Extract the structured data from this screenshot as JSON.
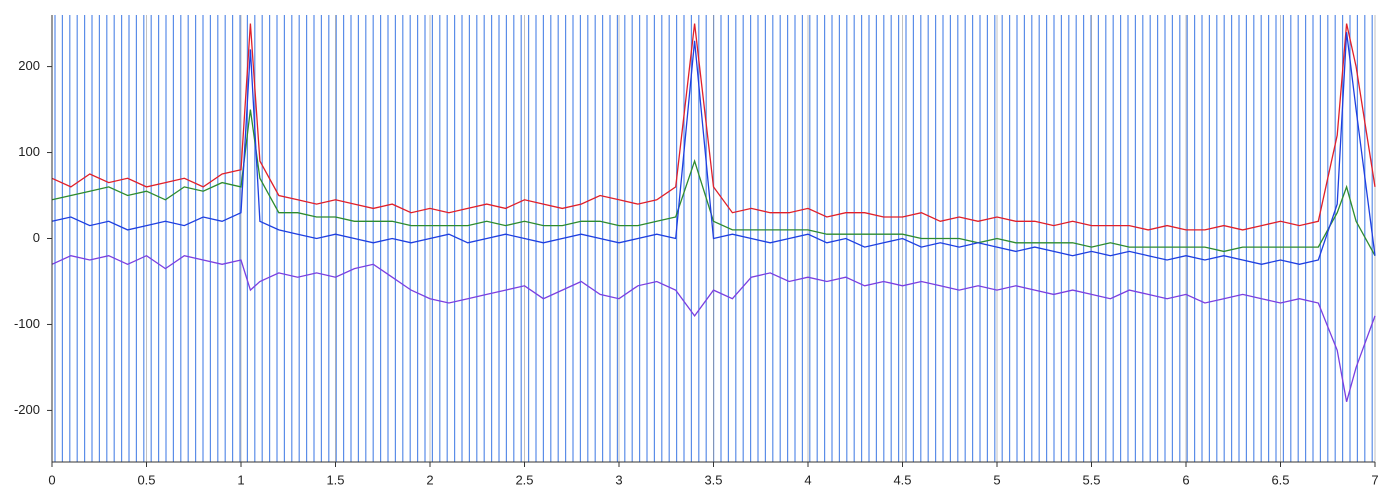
{
  "chart_data": {
    "type": "line",
    "x": [
      0,
      0.1,
      0.2,
      0.3,
      0.4,
      0.5,
      0.6,
      0.7,
      0.8,
      0.9,
      1,
      1.05,
      1.1,
      1.2,
      1.3,
      1.4,
      1.5,
      1.6,
      1.7,
      1.8,
      1.9,
      2,
      2.1,
      2.2,
      2.3,
      2.4,
      2.5,
      2.6,
      2.7,
      2.8,
      2.9,
      3,
      3.1,
      3.2,
      3.3,
      3.4,
      3.5,
      3.6,
      3.7,
      3.8,
      3.9,
      4,
      4.1,
      4.2,
      4.3,
      4.4,
      4.5,
      4.6,
      4.7,
      4.8,
      4.9,
      5,
      5.1,
      5.2,
      5.3,
      5.4,
      5.5,
      5.6,
      5.7,
      5.8,
      5.9,
      6,
      6.1,
      6.2,
      6.3,
      6.4,
      6.5,
      6.6,
      6.7,
      6.8,
      6.85,
      6.9,
      7
    ],
    "series": [
      {
        "color": "#e0202a",
        "values": [
          70,
          60,
          75,
          65,
          70,
          60,
          65,
          70,
          60,
          75,
          80,
          250,
          90,
          50,
          45,
          40,
          45,
          40,
          35,
          40,
          30,
          35,
          30,
          35,
          40,
          35,
          45,
          40,
          35,
          40,
          50,
          45,
          40,
          45,
          60,
          250,
          60,
          30,
          35,
          30,
          30,
          35,
          25,
          30,
          30,
          25,
          25,
          30,
          20,
          25,
          20,
          25,
          20,
          20,
          15,
          20,
          15,
          15,
          15,
          10,
          15,
          10,
          10,
          15,
          10,
          15,
          20,
          15,
          20,
          120,
          250,
          200,
          60
        ]
      },
      {
        "color": "#2e8b2e",
        "values": [
          45,
          50,
          55,
          60,
          50,
          55,
          45,
          60,
          55,
          65,
          60,
          150,
          70,
          30,
          30,
          25,
          25,
          20,
          20,
          20,
          15,
          15,
          15,
          15,
          20,
          15,
          20,
          15,
          15,
          20,
          20,
          15,
          15,
          20,
          25,
          90,
          20,
          10,
          10,
          10,
          10,
          10,
          5,
          5,
          5,
          5,
          5,
          0,
          0,
          0,
          -5,
          0,
          -5,
          -5,
          -5,
          -5,
          -10,
          -5,
          -10,
          -10,
          -10,
          -10,
          -10,
          -15,
          -10,
          -10,
          -10,
          -10,
          -10,
          30,
          60,
          20,
          -20
        ]
      },
      {
        "color": "#1f3fe0",
        "values": [
          20,
          25,
          15,
          20,
          10,
          15,
          20,
          15,
          25,
          20,
          30,
          220,
          20,
          10,
          5,
          0,
          5,
          0,
          -5,
          0,
          -5,
          0,
          5,
          -5,
          0,
          5,
          0,
          -5,
          0,
          5,
          0,
          -5,
          0,
          5,
          0,
          230,
          0,
          5,
          0,
          -5,
          0,
          5,
          -5,
          0,
          -10,
          -5,
          0,
          -10,
          -5,
          -10,
          -5,
          -10,
          -15,
          -10,
          -15,
          -20,
          -15,
          -20,
          -15,
          -20,
          -25,
          -20,
          -25,
          -20,
          -25,
          -30,
          -25,
          -30,
          -25,
          40,
          240,
          150,
          -20
        ]
      },
      {
        "color": "#7b3fe0",
        "values": [
          -30,
          -20,
          -25,
          -20,
          -30,
          -20,
          -35,
          -20,
          -25,
          -30,
          -25,
          -60,
          -50,
          -40,
          -45,
          -40,
          -45,
          -35,
          -30,
          -45,
          -60,
          -70,
          -75,
          -70,
          -65,
          -60,
          -55,
          -70,
          -60,
          -50,
          -65,
          -70,
          -55,
          -50,
          -60,
          -90,
          -60,
          -70,
          -45,
          -40,
          -50,
          -45,
          -50,
          -45,
          -55,
          -50,
          -55,
          -50,
          -55,
          -60,
          -55,
          -60,
          -55,
          -60,
          -65,
          -60,
          -65,
          -70,
          -60,
          -65,
          -70,
          -65,
          -75,
          -70,
          -65,
          -70,
          -75,
          -70,
          -75,
          -130,
          -190,
          -150,
          -90
        ]
      }
    ],
    "xlim": [
      0,
      7
    ],
    "xticks": [
      0,
      0.5,
      1,
      1.5,
      2,
      2.5,
      3,
      3.5,
      4,
      4.5,
      5,
      5.5,
      6,
      6.5,
      7
    ],
    "ylim": [
      -260,
      260
    ],
    "yticks": [
      -200,
      -100,
      0,
      100,
      200
    ],
    "grid": true
  }
}
